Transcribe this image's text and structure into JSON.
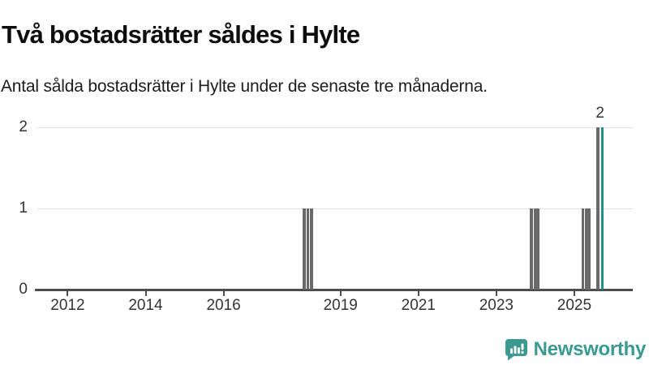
{
  "header": {
    "title": "Två bostadsrätter såldes i Hylte",
    "subtitle": "Antal sålda bostadsrätter i Hylte under de senaste tre månaderna."
  },
  "chart_data": {
    "type": "bar",
    "title": "Två bostadsrätter såldes i Hylte",
    "subtitle": "Antal sålda bostadsrätter i Hylte under de senaste tre månaderna.",
    "xlabel": "",
    "ylabel": "",
    "x_unit": "year (monthly bars, rolling 3-month count)",
    "xlim": [
      2011.2,
      2026.5
    ],
    "ylim": [
      0,
      2
    ],
    "yticks": [
      0,
      1,
      2
    ],
    "xticks": [
      2012,
      2014,
      2016,
      2019,
      2021,
      2023,
      2025
    ],
    "grid": "horizontal",
    "legend": "none",
    "bar_width_years": 0.077,
    "bars": [
      {
        "x": 2018.07,
        "value": 1,
        "color": "gray"
      },
      {
        "x": 2018.165,
        "value": 1,
        "color": "gray"
      },
      {
        "x": 2018.26,
        "value": 1,
        "color": "gray"
      },
      {
        "x": 2023.905,
        "value": 1,
        "color": "gray"
      },
      {
        "x": 2023.99,
        "value": 1,
        "color": "gray"
      },
      {
        "x": 2024.07,
        "value": 1,
        "color": "gray"
      },
      {
        "x": 2025.22,
        "value": 1,
        "color": "gray"
      },
      {
        "x": 2025.3,
        "value": 1,
        "color": "gray"
      },
      {
        "x": 2025.38,
        "value": 1,
        "color": "gray"
      },
      {
        "x": 2025.61,
        "value": 2,
        "color": "gray"
      },
      {
        "x": 2025.72,
        "value": 2,
        "color": "highlight"
      }
    ],
    "annotation": {
      "text": "2",
      "x": 2025.66,
      "y": 2
    },
    "colors": {
      "bar": "#6a6a6a",
      "highlight": "#17948c",
      "grid": "#e4e4e4",
      "axis": "#4d4d4d",
      "text": "#333333"
    }
  },
  "footer": {
    "brand": "Newsworthy",
    "logo_icon": "newsworthy-speech-bubble-bar-chart-icon",
    "brand_color": "#3a9a92"
  }
}
